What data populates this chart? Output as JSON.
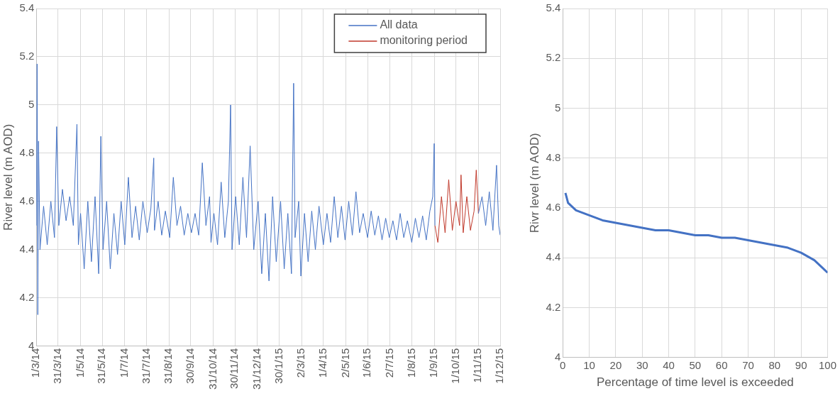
{
  "chart_data": [
    {
      "type": "line",
      "ylabel": "River level (m AOD)",
      "xlim": [
        "2014-03-01",
        "2015-12-01"
      ],
      "ylim": [
        4,
        5.4
      ],
      "yticks": [
        4,
        4.2,
        4.4,
        4.6,
        4.8,
        5,
        5.2,
        5.4
      ],
      "xticks": [
        {
          "value": "2014-03-01",
          "label": "1/3/14"
        },
        {
          "value": "2014-03-31",
          "label": "31/3/14"
        },
        {
          "value": "2014-05-01",
          "label": "1/5/14"
        },
        {
          "value": "2014-05-31",
          "label": "31/5/14"
        },
        {
          "value": "2014-07-01",
          "label": "1/7/14"
        },
        {
          "value": "2014-07-31",
          "label": "31/7/14"
        },
        {
          "value": "2014-08-31",
          "label": "31/8/14"
        },
        {
          "value": "2014-09-30",
          "label": "30/9/14"
        },
        {
          "value": "2014-10-31",
          "label": "31/10/14"
        },
        {
          "value": "2014-11-30",
          "label": "30/11/14"
        },
        {
          "value": "2014-12-31",
          "label": "31/12/14"
        },
        {
          "value": "2015-01-30",
          "label": "30/1/15"
        },
        {
          "value": "2015-03-02",
          "label": "2/3/15"
        },
        {
          "value": "2015-04-01",
          "label": "1/4/15"
        },
        {
          "value": "2015-05-02",
          "label": "2/5/15"
        },
        {
          "value": "2015-06-01",
          "label": "1/6/15"
        },
        {
          "value": "2015-07-02",
          "label": "2/7/15"
        },
        {
          "value": "2015-08-01",
          "label": "1/8/15"
        },
        {
          "value": "2015-09-01",
          "label": "1/9/15"
        },
        {
          "value": "2015-10-01",
          "label": "1/10/15"
        },
        {
          "value": "2015-11-01",
          "label": "1/11/15"
        },
        {
          "value": "2015-12-01",
          "label": "1/12/15"
        }
      ],
      "grid": true,
      "legend": "top right",
      "marker": "none",
      "line_style": "solid",
      "series": [
        {
          "name": "All data",
          "color": "#4472c4",
          "x": [
            "2014-03-01",
            "2014-03-02",
            "2014-03-03",
            "2014-03-04",
            "2014-03-06",
            "2014-03-11",
            "2014-03-16",
            "2014-03-21",
            "2014-03-26",
            "2014-03-29",
            "2014-04-01",
            "2014-04-06",
            "2014-04-11",
            "2014-04-16",
            "2014-04-21",
            "2014-04-26",
            "2014-04-28",
            "2014-05-01",
            "2014-05-06",
            "2014-05-11",
            "2014-05-16",
            "2014-05-21",
            "2014-05-26",
            "2014-05-29",
            "2014-06-01",
            "2014-06-06",
            "2014-06-11",
            "2014-06-16",
            "2014-06-21",
            "2014-06-26",
            "2014-07-01",
            "2014-07-06",
            "2014-07-11",
            "2014-07-16",
            "2014-07-21",
            "2014-07-26",
            "2014-08-01",
            "2014-08-06",
            "2014-08-10",
            "2014-08-11",
            "2014-08-16",
            "2014-08-21",
            "2014-08-26",
            "2014-09-01",
            "2014-09-06",
            "2014-09-11",
            "2014-09-16",
            "2014-09-21",
            "2014-09-26",
            "2014-10-01",
            "2014-10-06",
            "2014-10-11",
            "2014-10-16",
            "2014-10-21",
            "2014-10-26",
            "2014-10-28",
            "2014-11-01",
            "2014-11-06",
            "2014-11-11",
            "2014-11-16",
            "2014-11-21",
            "2014-11-24",
            "2014-11-26",
            "2014-12-01",
            "2014-12-06",
            "2014-12-11",
            "2014-12-16",
            "2014-12-21",
            "2014-12-26",
            "2015-01-01",
            "2015-01-06",
            "2015-01-11",
            "2015-01-16",
            "2015-01-21",
            "2015-01-26",
            "2015-02-01",
            "2015-02-06",
            "2015-02-11",
            "2015-02-16",
            "2015-02-19",
            "2015-02-21",
            "2015-02-26",
            "2015-03-01",
            "2015-03-06",
            "2015-03-11",
            "2015-03-16",
            "2015-03-21",
            "2015-03-26",
            "2015-04-01",
            "2015-04-06",
            "2015-04-11",
            "2015-04-16",
            "2015-04-21",
            "2015-04-26",
            "2015-05-01",
            "2015-05-06",
            "2015-05-11",
            "2015-05-16",
            "2015-05-21",
            "2015-05-26",
            "2015-06-01",
            "2015-06-06",
            "2015-06-11",
            "2015-06-16",
            "2015-06-21",
            "2015-06-26",
            "2015-07-01",
            "2015-07-06",
            "2015-07-11",
            "2015-07-16",
            "2015-07-21",
            "2015-07-26",
            "2015-08-01",
            "2015-08-06",
            "2015-08-11",
            "2015-08-16",
            "2015-08-21",
            "2015-08-26",
            "2015-08-30",
            "2015-09-01",
            "2015-09-02",
            "2015-10-01",
            "2015-11-01",
            "2015-11-06",
            "2015-11-11",
            "2015-11-16",
            "2015-11-21",
            "2015-11-26",
            "2015-11-29",
            "2015-12-01"
          ],
          "values": [
            4.5,
            5.17,
            4.13,
            4.85,
            4.4,
            4.58,
            4.42,
            4.6,
            4.45,
            4.91,
            4.5,
            4.65,
            4.52,
            4.62,
            4.5,
            4.92,
            4.42,
            4.55,
            4.32,
            4.6,
            4.35,
            4.62,
            4.3,
            4.87,
            4.4,
            4.6,
            4.32,
            4.55,
            4.38,
            4.6,
            4.42,
            4.7,
            4.45,
            4.58,
            4.44,
            4.6,
            4.47,
            4.57,
            4.78,
            4.48,
            4.6,
            4.46,
            4.56,
            4.45,
            4.7,
            4.5,
            4.58,
            4.46,
            4.55,
            4.47,
            4.55,
            4.46,
            4.76,
            4.5,
            4.62,
            4.43,
            4.55,
            4.42,
            4.68,
            4.45,
            4.6,
            5.0,
            4.4,
            4.62,
            4.42,
            4.7,
            4.45,
            4.83,
            4.4,
            4.6,
            4.3,
            4.55,
            4.27,
            4.62,
            4.35,
            4.6,
            4.32,
            4.55,
            4.3,
            5.09,
            4.45,
            4.6,
            4.29,
            4.55,
            4.35,
            4.56,
            4.4,
            4.58,
            4.42,
            4.55,
            4.43,
            4.62,
            4.45,
            4.58,
            4.44,
            4.6,
            4.46,
            4.64,
            4.47,
            4.55,
            4.45,
            4.56,
            4.46,
            4.54,
            4.44,
            4.53,
            4.45,
            4.52,
            4.44,
            4.55,
            4.45,
            4.52,
            4.43,
            4.53,
            4.45,
            4.54,
            4.44,
            4.56,
            4.62,
            4.84,
            4.5,
            null,
            4.55,
            4.62,
            4.5,
            4.64,
            4.48,
            4.75,
            4.5,
            4.46
          ]
        },
        {
          "name": "monitoring period",
          "color": "#c0392b",
          "x": [
            "2015-09-02",
            "2015-09-06",
            "2015-09-11",
            "2015-09-16",
            "2015-09-21",
            "2015-09-26",
            "2015-10-01",
            "2015-10-06",
            "2015-10-08",
            "2015-10-11",
            "2015-10-16",
            "2015-10-21",
            "2015-10-26",
            "2015-10-29",
            "2015-11-01"
          ],
          "values": [
            4.5,
            4.43,
            4.62,
            4.47,
            4.69,
            4.48,
            4.6,
            4.5,
            4.71,
            4.47,
            4.62,
            4.48,
            4.56,
            4.73,
            4.55
          ]
        }
      ]
    },
    {
      "type": "line",
      "xlabel": "Percentage of time level is exceeded",
      "ylabel": "Rivr level (m AOD)",
      "xlim": [
        0,
        100
      ],
      "xticks": [
        0,
        10,
        20,
        30,
        40,
        50,
        60,
        70,
        80,
        90,
        100
      ],
      "ylim": [
        4,
        5.4
      ],
      "yticks": [
        4,
        4.2,
        4.4,
        4.6,
        4.8,
        5,
        5.2,
        5.4
      ],
      "grid": true,
      "marker": "none",
      "line_style": "solid",
      "series": [
        {
          "color": "#4472c4",
          "x": [
            1,
            2,
            3,
            5,
            10,
            15,
            20,
            25,
            30,
            35,
            40,
            45,
            50,
            55,
            60,
            65,
            70,
            75,
            80,
            85,
            90,
            95,
            98,
            100
          ],
          "values": [
            4.66,
            4.62,
            4.61,
            4.59,
            4.57,
            4.55,
            4.54,
            4.53,
            4.52,
            4.51,
            4.51,
            4.5,
            4.49,
            4.49,
            4.48,
            4.48,
            4.47,
            4.46,
            4.45,
            4.44,
            4.42,
            4.39,
            4.36,
            4.34
          ]
        }
      ]
    }
  ]
}
